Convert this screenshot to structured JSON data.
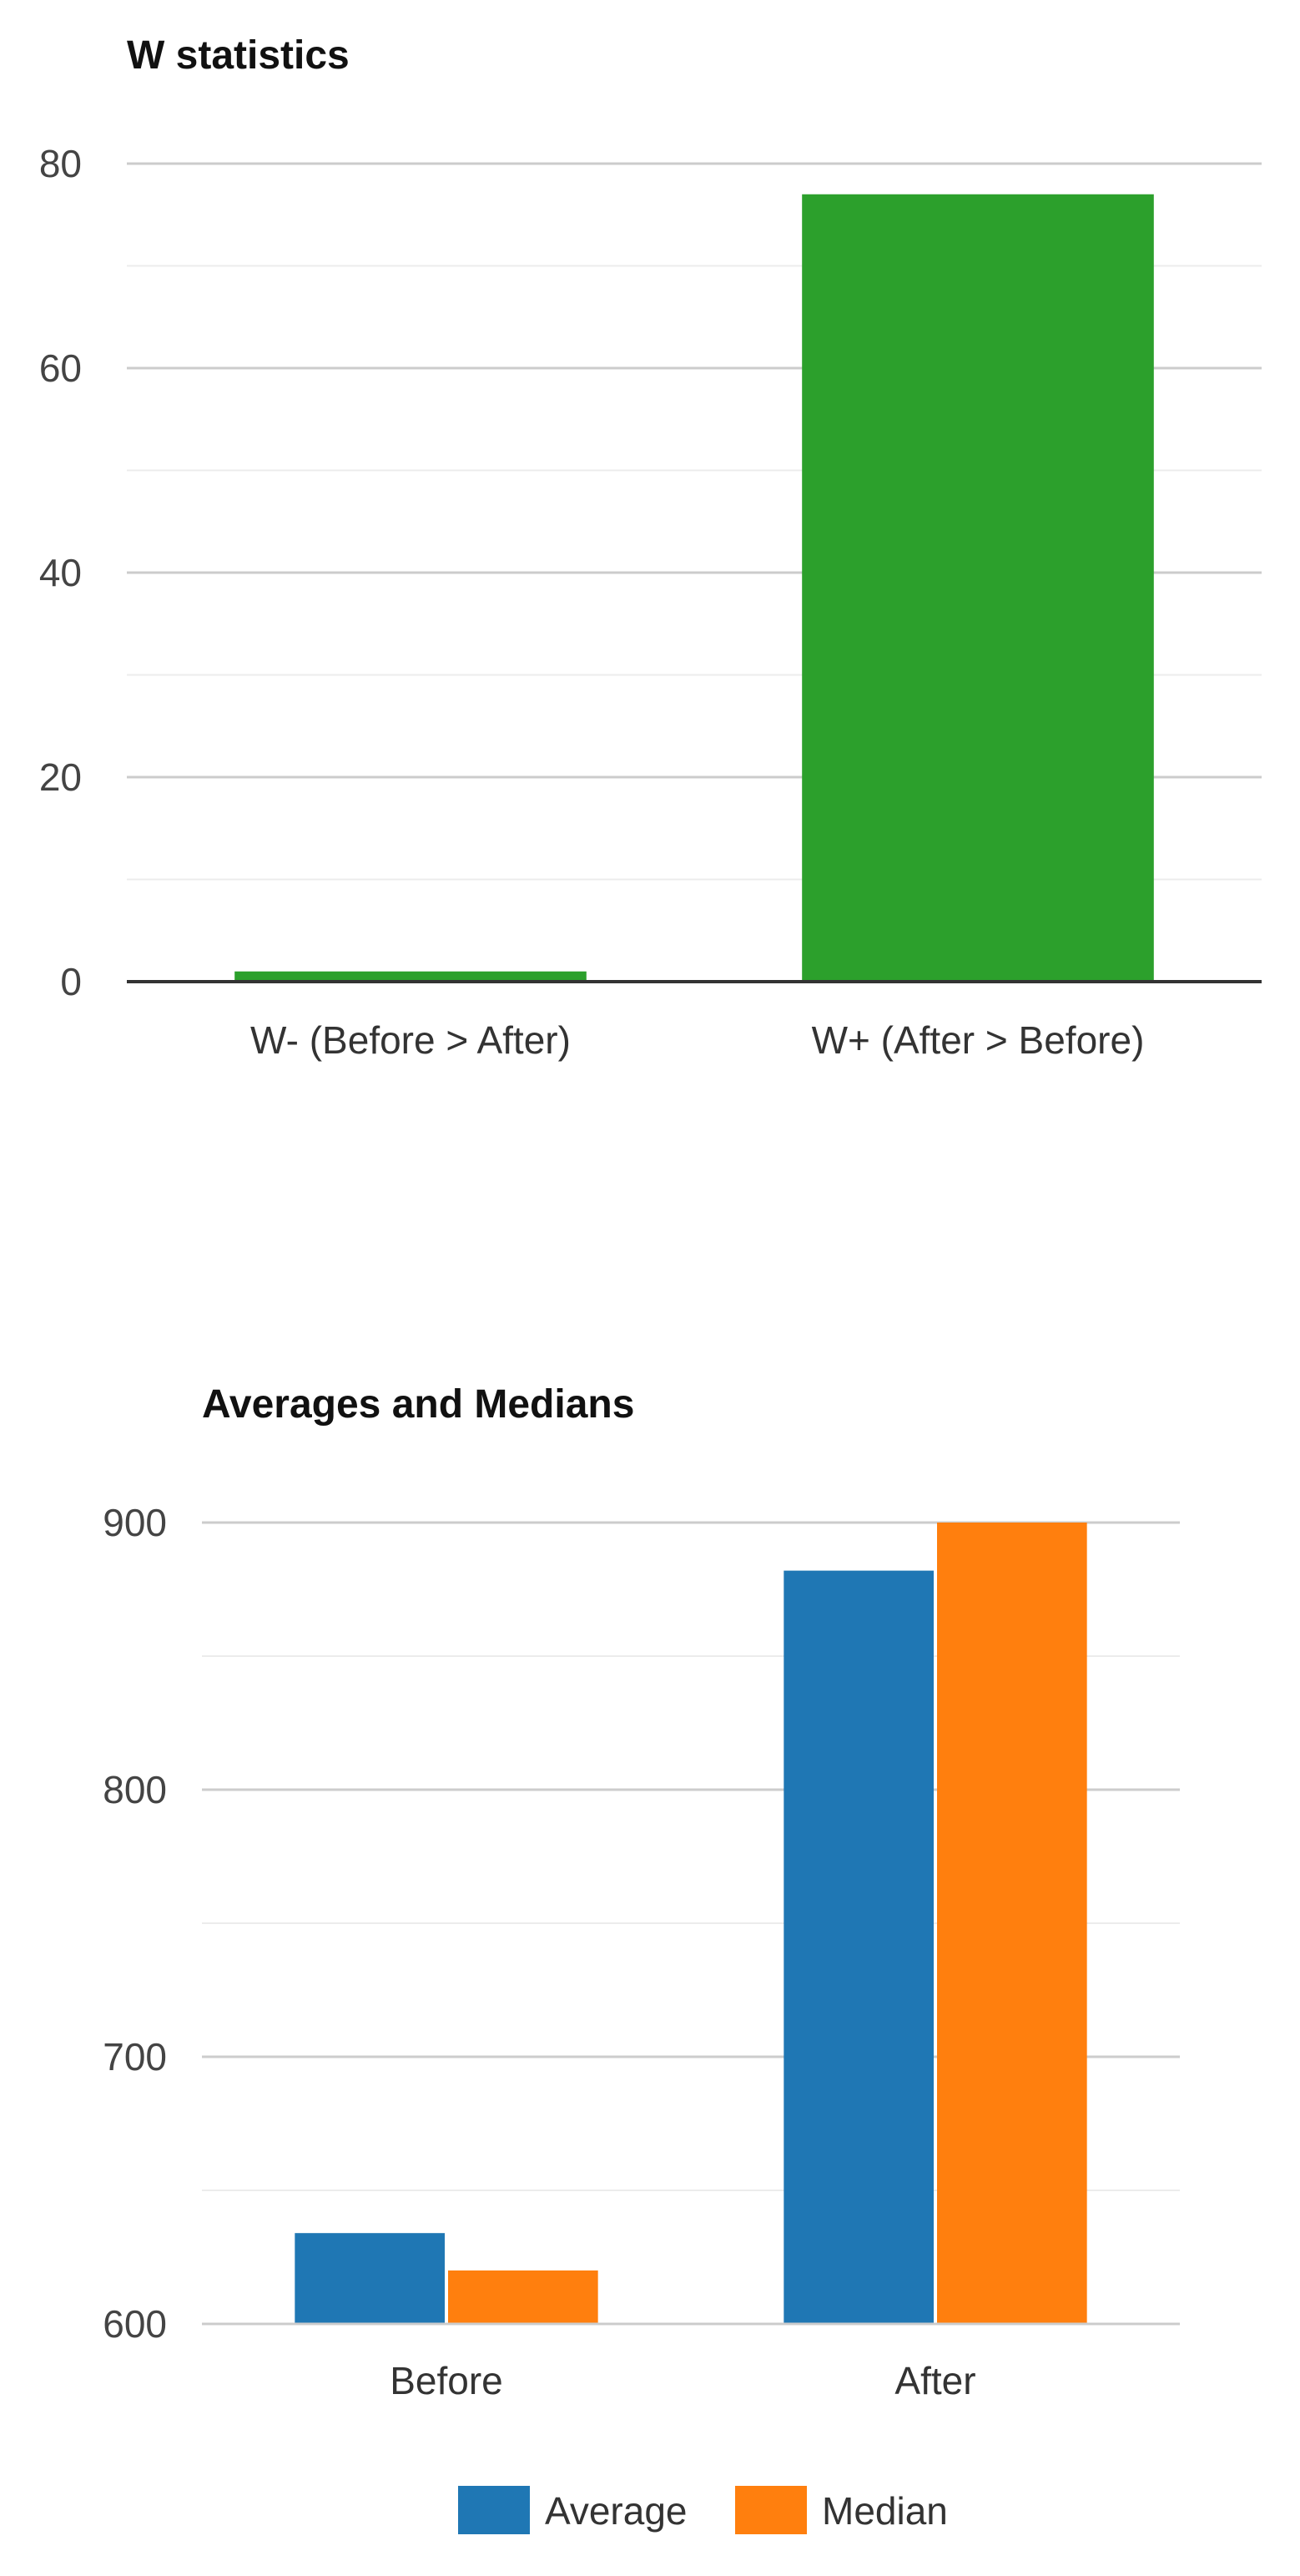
{
  "chart_data": [
    {
      "type": "bar",
      "title": "W statistics",
      "categories": [
        "W- (Before > After)",
        "W+ (After > Before)"
      ],
      "values": [
        1,
        77
      ],
      "ylim": [
        0,
        80
      ],
      "yticks": [
        0,
        20,
        40,
        60,
        80
      ],
      "ytick_labels": [
        "0",
        "20",
        "40",
        "60",
        "80"
      ],
      "minor_gridlines": true,
      "color": "#2ca02c",
      "legend": "none"
    },
    {
      "type": "bar",
      "title": "Averages and Medians",
      "categories": [
        "Before",
        "After"
      ],
      "series": [
        {
          "name": "Average",
          "values": [
            634,
            882
          ],
          "color": "#1f77b4"
        },
        {
          "name": "Median",
          "values": [
            620,
            900
          ],
          "color": "#ff7f0e"
        }
      ],
      "ylim": [
        600,
        900
      ],
      "yticks": [
        600,
        700,
        800,
        900
      ],
      "ytick_labels": [
        "600",
        "700",
        "800",
        "900"
      ],
      "minor_gridlines": true,
      "legend": "bottom"
    }
  ]
}
